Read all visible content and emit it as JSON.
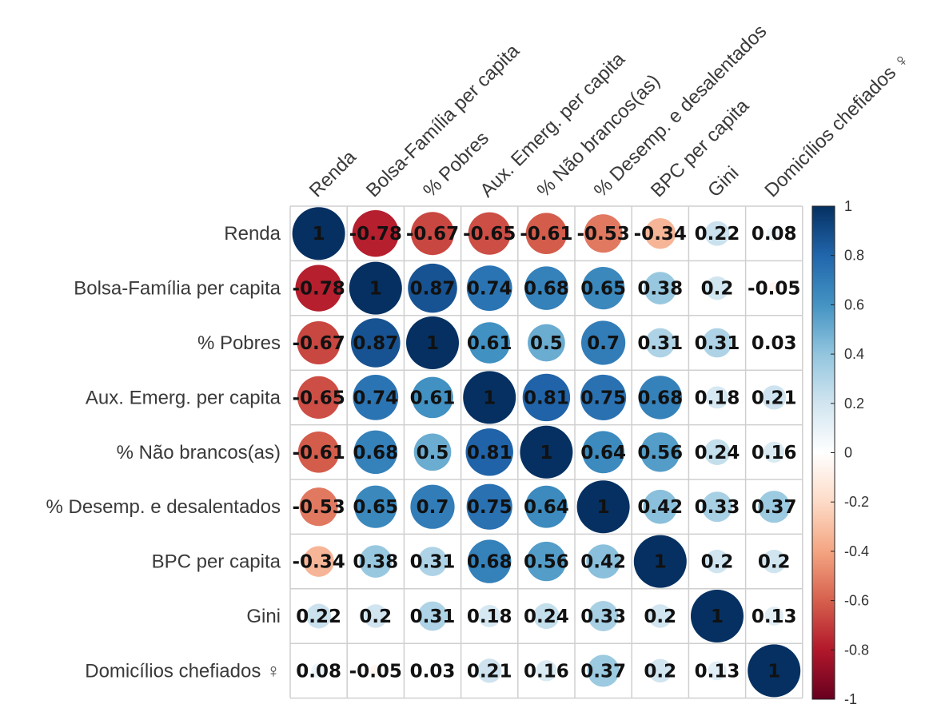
{
  "chart_data": {
    "type": "heatmap",
    "style": "correlation-circles",
    "variables": [
      "Renda",
      "Bolsa-Família per capita",
      "% Pobres",
      "Aux. Emerg. per capita",
      "% Não brancos(as)",
      "% Desemp. e desalentados",
      "BPC per capita",
      "Gini",
      "Domicílios chefiados ♀"
    ],
    "matrix": [
      [
        1,
        -0.78,
        -0.67,
        -0.65,
        -0.61,
        -0.53,
        -0.34,
        0.22,
        0.08
      ],
      [
        -0.78,
        1,
        0.87,
        0.74,
        0.68,
        0.65,
        0.38,
        0.2,
        -0.05
      ],
      [
        -0.67,
        0.87,
        1,
        0.61,
        0.5,
        0.7,
        0.31,
        0.31,
        0.03
      ],
      [
        -0.65,
        0.74,
        0.61,
        1,
        0.81,
        0.75,
        0.68,
        0.18,
        0.21
      ],
      [
        -0.61,
        0.68,
        0.5,
        0.81,
        1,
        0.64,
        0.56,
        0.24,
        0.16
      ],
      [
        -0.53,
        0.65,
        0.7,
        0.75,
        0.64,
        1,
        0.42,
        0.33,
        0.37
      ],
      [
        -0.34,
        0.38,
        0.31,
        0.68,
        0.56,
        0.42,
        1,
        0.2,
        0.2
      ],
      [
        0.22,
        0.2,
        0.31,
        0.18,
        0.24,
        0.33,
        0.2,
        1,
        0.13
      ],
      [
        0.08,
        -0.05,
        0.03,
        0.21,
        0.16,
        0.37,
        0.2,
        0.13,
        1
      ]
    ],
    "color_scale": {
      "range": [
        -1,
        1
      ],
      "ticks": [
        "1",
        "0.8",
        "0.6",
        "0.4",
        "0.2",
        "0",
        "-0.2",
        "-0.4",
        "-0.6",
        "-0.8",
        "-1"
      ],
      "colors": {
        "negative_end": "#67001f",
        "neutral": "#ffffff",
        "positive_end": "#053061"
      },
      "legend_position": "right"
    },
    "grid": true
  }
}
